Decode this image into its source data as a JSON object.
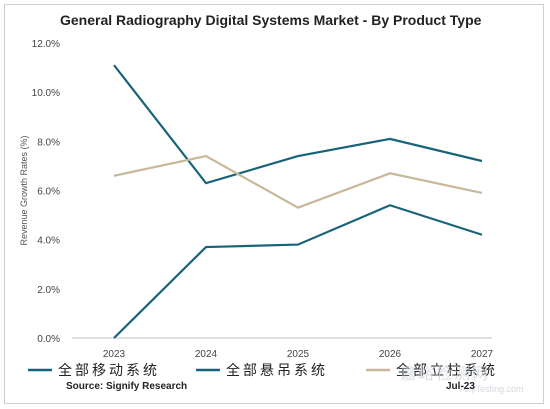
{
  "title": "General Radiography Digital Systems Market - By Product Type",
  "source": "Source: Signify Research",
  "date": "Jul-23",
  "watermark": "嘉峪检测网",
  "watermark_sub": "AnyTesting.com",
  "chart_data": {
    "type": "line",
    "x": [
      "2023",
      "2024",
      "2025",
      "2026",
      "2027"
    ],
    "ylabel": "Revenue Growth Rates (%)",
    "ylim": [
      0,
      12
    ],
    "yticks": [
      "0.0%",
      "2.0%",
      "4.0%",
      "6.0%",
      "8.0%",
      "10.0%",
      "12.0%"
    ],
    "legend_position": "bottom",
    "grid": false,
    "series": [
      {
        "name": "全部移动系统",
        "color": "#17647a",
        "values": [
          0.0,
          3.7,
          3.8,
          5.4,
          4.2
        ]
      },
      {
        "name": "全部悬吊系统",
        "color": "#17647a",
        "values": [
          11.1,
          6.3,
          7.4,
          8.1,
          7.2
        ]
      },
      {
        "name": "全部立柱系统",
        "color": "#c8b89a",
        "values": [
          6.6,
          7.4,
          5.3,
          6.7,
          5.9
        ]
      }
    ]
  }
}
